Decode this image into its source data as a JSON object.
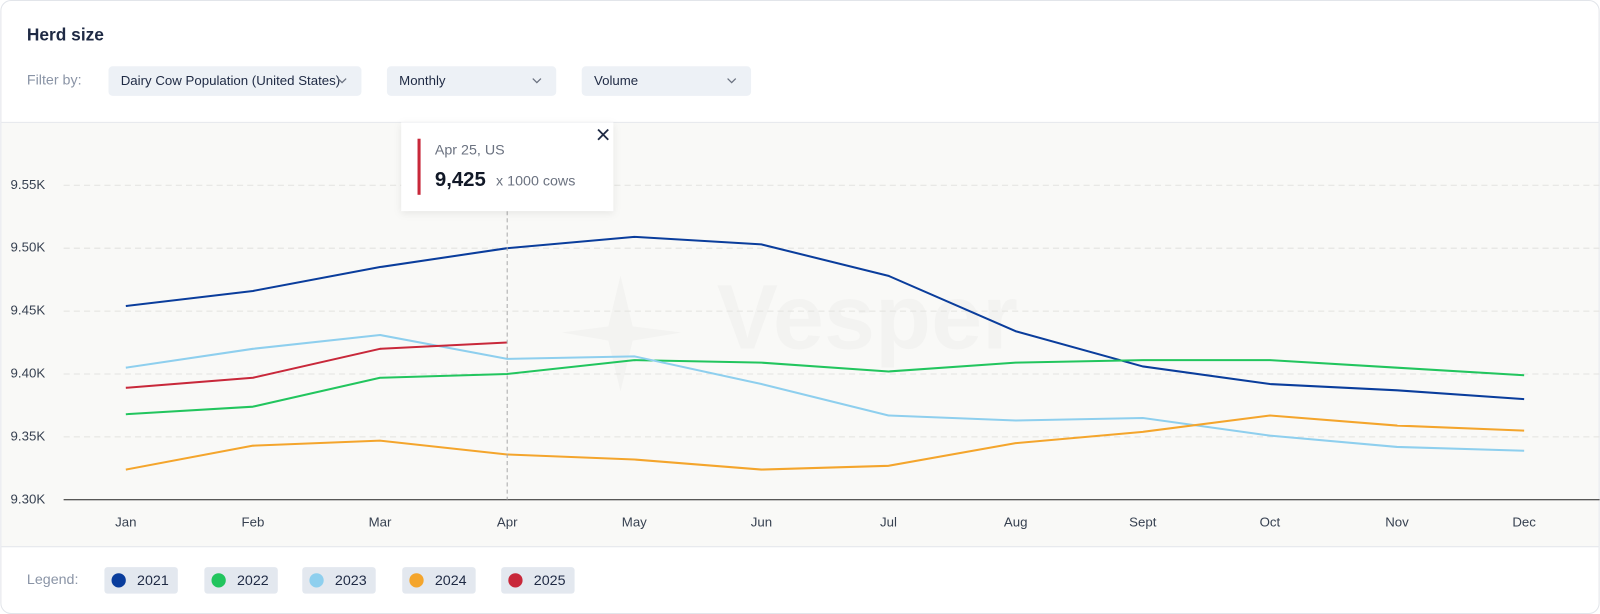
{
  "header": {
    "title": "Herd size"
  },
  "filters": {
    "label": "Filter by:",
    "options": [
      "Dairy Cow Population (United States)",
      "Monthly",
      "Volume"
    ]
  },
  "watermark": "Vesper",
  "legend_label": "Legend:",
  "tooltip": {
    "title": "Apr 25, US",
    "value": "9,425",
    "unit": "x 1000 cows"
  },
  "chart_data": {
    "type": "line",
    "categories": [
      "Jan",
      "Feb",
      "Mar",
      "Apr",
      "May",
      "Jun",
      "Jul",
      "Aug",
      "Sept",
      "Oct",
      "Nov",
      "Dec"
    ],
    "ylim": [
      9300,
      9600
    ],
    "yticks": [
      {
        "value": 9300,
        "label": "9.30K"
      },
      {
        "value": 9350,
        "label": "9.35K"
      },
      {
        "value": 9400,
        "label": "9.40K"
      },
      {
        "value": 9450,
        "label": "9.45K"
      },
      {
        "value": 9500,
        "label": "9.50K"
      },
      {
        "value": 9550,
        "label": "9.55K"
      }
    ],
    "grid": true,
    "series": [
      {
        "name": "2021",
        "color": "#0a3d9c",
        "values": [
          9454,
          9466,
          9485,
          9500,
          9509,
          9503,
          9478,
          9434,
          9406,
          9392,
          9387,
          9380
        ]
      },
      {
        "name": "2022",
        "color": "#22c55e",
        "values": [
          9368,
          9374,
          9397,
          9400,
          9411,
          9409,
          9402,
          9409,
          9411,
          9411,
          9405,
          9399
        ]
      },
      {
        "name": "2023",
        "color": "#8ecfee",
        "values": [
          9405,
          9420,
          9431,
          9412,
          9414,
          9392,
          9367,
          9363,
          9365,
          9351,
          9342,
          9339
        ]
      },
      {
        "name": "2024",
        "color": "#f4a52c",
        "values": [
          9324,
          9343,
          9347,
          9336,
          9332,
          9324,
          9327,
          9345,
          9354,
          9367,
          9359,
          9355
        ]
      },
      {
        "name": "2025",
        "color": "#c8283a",
        "values": [
          9389,
          9397,
          9420,
          9425,
          null,
          null,
          null,
          null,
          null,
          null,
          null,
          null
        ]
      }
    ]
  }
}
